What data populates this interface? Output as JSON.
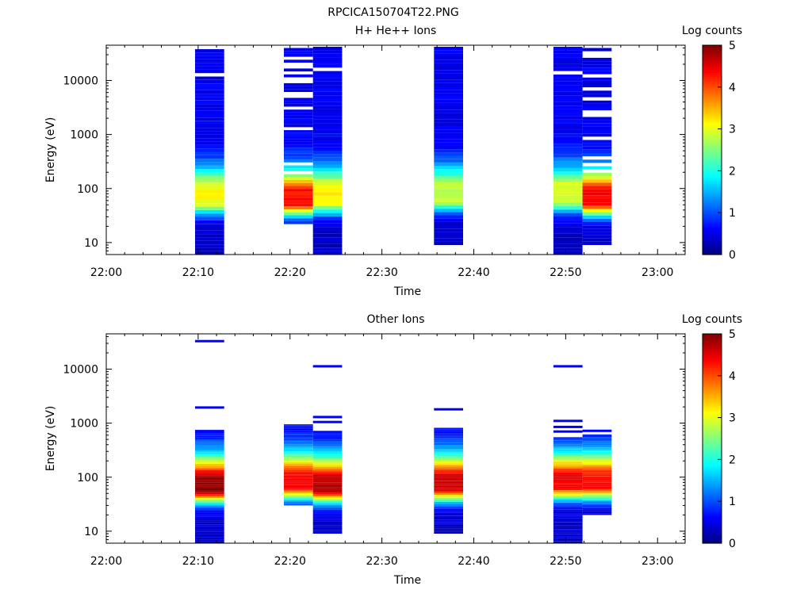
{
  "page_title": "RPCICA150704T22.PNG",
  "chart_data": [
    {
      "type": "heatmap",
      "title": "H+ He++ Ions",
      "xlabel": "Time",
      "ylabel": "Energy (eV)",
      "x_ticks": [
        "22:00",
        "22:10",
        "22:20",
        "22:30",
        "22:40",
        "22:50",
        "23:00"
      ],
      "x_range": [
        "22:00",
        "23:03"
      ],
      "y_ticks": [
        "10",
        "100",
        "1000",
        "10000"
      ],
      "y_scale": "log",
      "y_range": [
        6,
        45000
      ],
      "colorbar": {
        "label": "Log counts",
        "range": [
          0,
          5
        ],
        "ticks": [
          "0",
          "1",
          "2",
          "3",
          "4",
          "5"
        ]
      },
      "columns": [
        {
          "t0": "22:09:40",
          "t1": "22:12:50",
          "e_min": 6,
          "e_max": 38000,
          "peak_energy": 65,
          "peak_log_counts": 3.1,
          "profile": "dense"
        },
        {
          "t0": "22:19:20",
          "t1": "22:22:30",
          "e_min": 22,
          "e_max": 40000,
          "peak_energy": 60,
          "peak_log_counts": 4.3,
          "profile": "sparse"
        },
        {
          "t0": "22:22:30",
          "t1": "22:25:40",
          "e_min": 6,
          "e_max": 42000,
          "peak_energy": 65,
          "peak_log_counts": 3.2,
          "profile": "dense"
        },
        {
          "t0": "22:35:40",
          "t1": "22:38:50",
          "e_min": 9,
          "e_max": 42000,
          "peak_energy": 70,
          "peak_log_counts": 2.8,
          "profile": "dense"
        },
        {
          "t0": "22:48:40",
          "t1": "22:51:50",
          "e_min": 6,
          "e_max": 42000,
          "peak_energy": 70,
          "peak_log_counts": 2.9,
          "profile": "dense"
        },
        {
          "t0": "22:51:50",
          "t1": "22:55:00",
          "e_min": 9,
          "e_max": 40000,
          "peak_energy": 60,
          "peak_log_counts": 4.4,
          "profile": "sparse"
        }
      ]
    },
    {
      "type": "heatmap",
      "title": "Other Ions",
      "xlabel": "Time",
      "ylabel": "Energy (eV)",
      "x_ticks": [
        "22:00",
        "22:10",
        "22:20",
        "22:30",
        "22:40",
        "22:50",
        "23:00"
      ],
      "x_range": [
        "22:00",
        "23:03"
      ],
      "y_ticks": [
        "10",
        "100",
        "1000",
        "10000"
      ],
      "y_scale": "log",
      "y_range": [
        6,
        45000
      ],
      "colorbar": {
        "label": "Log counts",
        "range": [
          0,
          5
        ],
        "ticks": [
          "0",
          "1",
          "2",
          "3",
          "4",
          "5"
        ]
      },
      "columns": [
        {
          "t0": "22:09:40",
          "t1": "22:12:50",
          "e_min": 6,
          "e_max": 750,
          "peak_energy": 65,
          "peak_log_counts": 4.9,
          "profile": "dense"
        },
        {
          "t0": "22:19:20",
          "t1": "22:22:30",
          "e_min": 30,
          "e_max": 950,
          "peak_energy": 75,
          "peak_log_counts": 4.4,
          "profile": "dense"
        },
        {
          "t0": "22:22:30",
          "t1": "22:25:40",
          "e_min": 9,
          "e_max": 720,
          "peak_energy": 65,
          "peak_log_counts": 4.7,
          "profile": "dense"
        },
        {
          "t0": "22:35:40",
          "t1": "22:38:50",
          "e_min": 9,
          "e_max": 820,
          "peak_energy": 70,
          "peak_log_counts": 4.6,
          "profile": "dense"
        },
        {
          "t0": "22:48:40",
          "t1": "22:51:50",
          "e_min": 6,
          "e_max": 550,
          "peak_energy": 75,
          "peak_log_counts": 4.4,
          "profile": "dense"
        },
        {
          "t0": "22:51:50",
          "t1": "22:55:00",
          "e_min": 20,
          "e_max": 620,
          "peak_energy": 75,
          "peak_log_counts": 4.3,
          "profile": "dense"
        }
      ],
      "isolated_bins": [
        {
          "t0": "22:09:40",
          "t1": "22:12:50",
          "energy": 33000
        },
        {
          "t0": "22:09:40",
          "t1": "22:12:50",
          "energy": 1950
        },
        {
          "t0": "22:22:30",
          "t1": "22:25:40",
          "energy": 11300
        },
        {
          "t0": "22:22:30",
          "t1": "22:25:40",
          "energy": 1300
        },
        {
          "t0": "22:22:30",
          "t1": "22:25:40",
          "energy": 1050
        },
        {
          "t0": "22:35:40",
          "t1": "22:38:50",
          "energy": 1800
        },
        {
          "t0": "22:48:40",
          "t1": "22:51:50",
          "energy": 11300
        },
        {
          "t0": "22:48:40",
          "t1": "22:51:50",
          "energy": 1100
        },
        {
          "t0": "22:48:40",
          "t1": "22:51:50",
          "energy": 850
        },
        {
          "t0": "22:48:40",
          "t1": "22:51:50",
          "energy": 700
        },
        {
          "t0": "22:51:50",
          "t1": "22:55:00",
          "energy": 720
        }
      ]
    }
  ]
}
